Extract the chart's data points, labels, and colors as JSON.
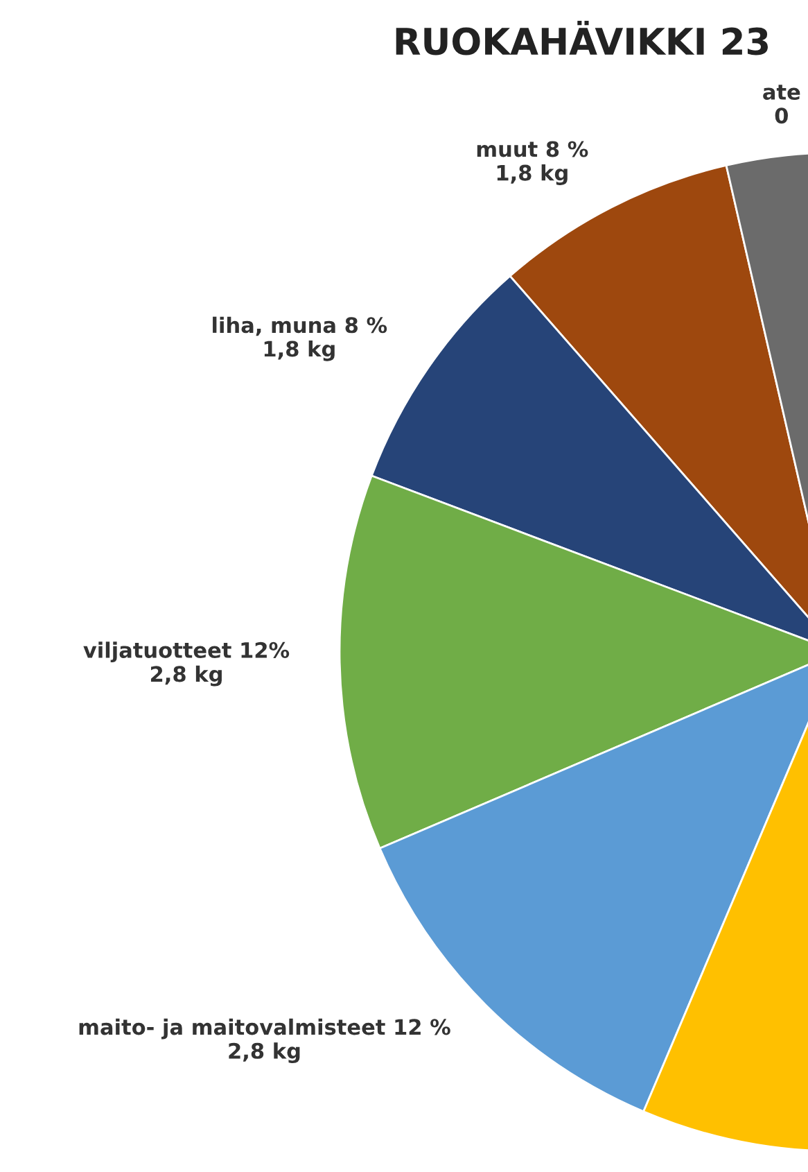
{
  "chart_data": {
    "type": "pie",
    "title": "RUOKAHÄVIKKI 23",
    "categories": [
      "muut 8 %",
      "liha, muna 8 %",
      "viljatuotteet 12%",
      "maito- ja maitovalmisteet 12 %",
      null,
      "ate\n0"
    ],
    "values": [
      1.8,
      1.8,
      2.8,
      2.8,
      12.9,
      0.9
    ],
    "value_labels": [
      "1,8 kg",
      "1,8 kg",
      "2,8 kg",
      "2,8 kg",
      null,
      null
    ],
    "colors": [
      "#9e480e",
      "#264478",
      "#70ad47",
      "#5b9bd5",
      "#ffc000",
      "#6b6b6b"
    ]
  }
}
